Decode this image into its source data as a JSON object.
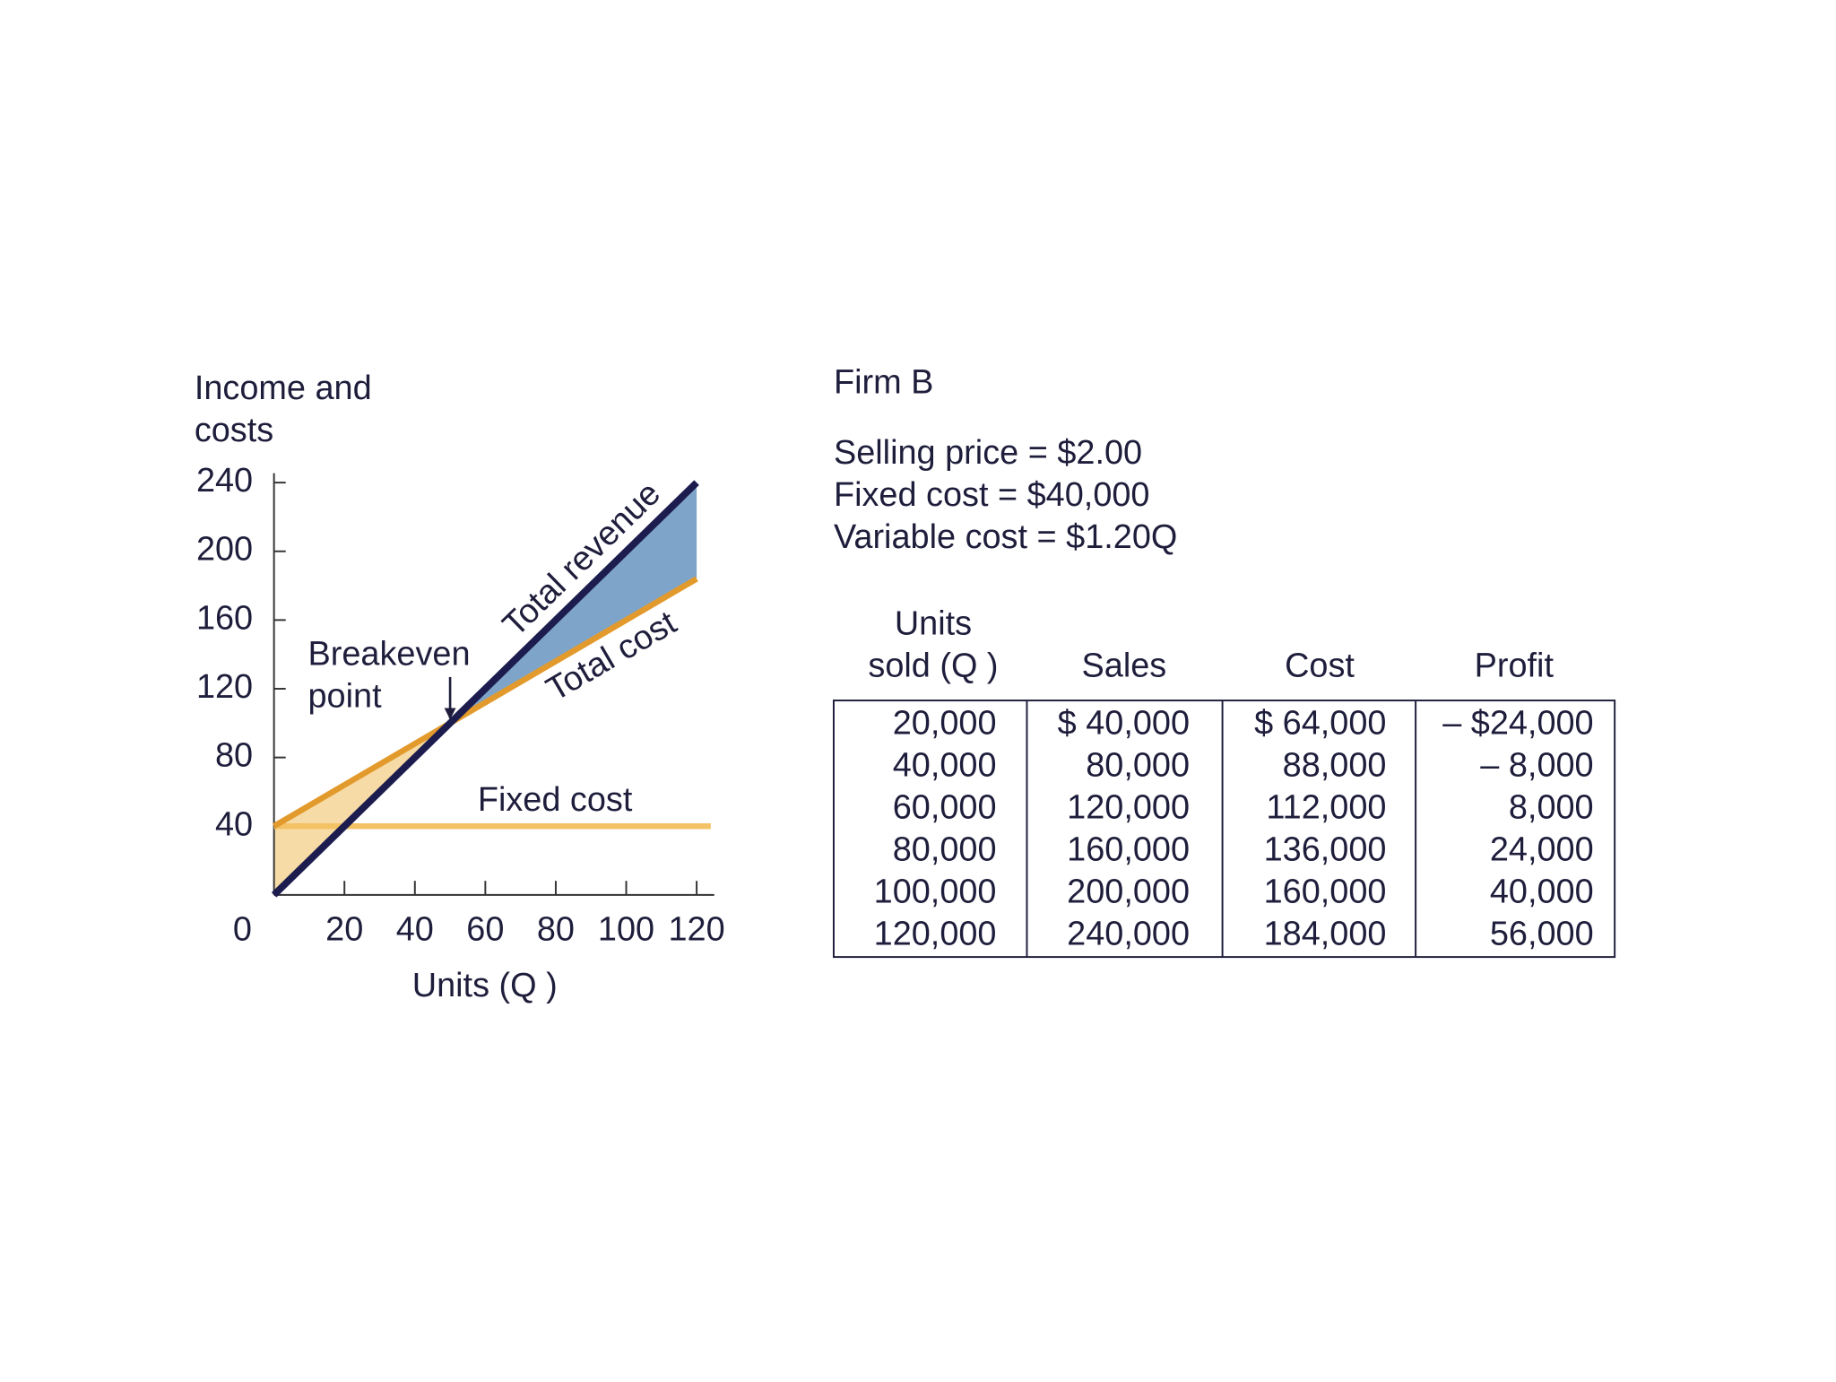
{
  "chart_data": {
    "type": "line",
    "ylabel": [
      "Income and",
      "costs"
    ],
    "xlabel": "Units (Q )",
    "xlim": [
      0,
      125
    ],
    "ylim": [
      0,
      240
    ],
    "xticks": [
      20,
      40,
      60,
      80,
      100,
      120
    ],
    "yticks": [
      0,
      40,
      80,
      120,
      160,
      200,
      240
    ],
    "series": [
      {
        "name": "Total revenue",
        "color": "#1c1c4e",
        "x": [
          0,
          120
        ],
        "values": [
          0,
          240
        ]
      },
      {
        "name": "Total cost",
        "color": "#e39a2c",
        "x": [
          0,
          120
        ],
        "values": [
          40,
          184
        ]
      },
      {
        "name": "Fixed cost",
        "color": "#f3c265",
        "x": [
          0,
          124
        ],
        "values": [
          40,
          40
        ]
      }
    ],
    "annotations": [
      {
        "text": [
          "Breakeven",
          "point"
        ],
        "x": 50,
        "y": 100
      }
    ],
    "fill_colors": [
      "#f6dba6",
      "#7ea5c9"
    ]
  },
  "panel": {
    "title": "Firm B",
    "lines": [
      "Selling price = $2.00",
      "Fixed cost = $40,000",
      "Variable cost = $1.20Q"
    ],
    "table": {
      "header": [
        [
          "Units",
          "sold (Q )"
        ],
        [
          "Sales"
        ],
        [
          "Cost"
        ],
        [
          "Profit"
        ]
      ],
      "rows": [
        [
          "20,000",
          "$ 40,000",
          "$ 64,000",
          "– $24,000"
        ],
        [
          "40,000",
          "80,000",
          "88,000",
          "– 8,000"
        ],
        [
          "60,000",
          "120,000",
          "112,000",
          "8,000"
        ],
        [
          "80,000",
          "160,000",
          "136,000",
          "24,000"
        ],
        [
          "100,000",
          "200,000",
          "160,000",
          "40,000"
        ],
        [
          "120,000",
          "240,000",
          "184,000",
          "56,000"
        ]
      ]
    }
  }
}
